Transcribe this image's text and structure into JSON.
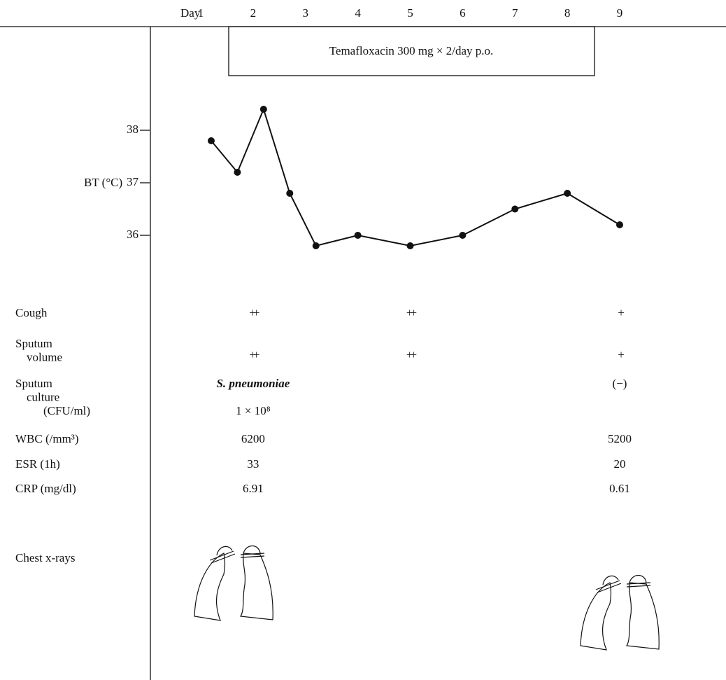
{
  "chart_data": {
    "type": "line",
    "x_label": "Day",
    "x": [
      1.2,
      1.7,
      2.2,
      2.7,
      3.2,
      4,
      5,
      6,
      7,
      8,
      9
    ],
    "xlim": [
      1,
      9
    ],
    "xticks": [
      1,
      2,
      3,
      4,
      5,
      6,
      7,
      8,
      9
    ],
    "y_label": "BT (°C)",
    "ylim": [
      35,
      39
    ],
    "yticks": [
      36,
      37,
      38
    ],
    "series": [
      {
        "color": "#111111",
        "values": [
          37.8,
          37.2,
          38.4,
          36.8,
          35.8,
          36.0,
          35.8,
          36.0,
          36.5,
          36.8,
          36.2
        ]
      }
    ],
    "annotation": "Temafloxacin 300 mg × 2/day p.o."
  },
  "course": {
    "rows": [
      {
        "label": [
          "Cough"
        ],
        "cells": [
          null,
          [
            "++"
          ],
          null,
          null,
          [
            "++"
          ],
          null,
          null,
          null,
          [
            "+"
          ]
        ]
      },
      {
        "label": [
          "Sputum",
          "volume"
        ],
        "cells": [
          null,
          [
            "++"
          ],
          null,
          null,
          [
            "++"
          ],
          null,
          null,
          null,
          [
            "+"
          ]
        ]
      },
      {
        "label": [
          "Sputum",
          "culture",
          "(CFU/ml)"
        ],
        "cells": [
          null,
          [
            "S. pneumoniae",
            "1 × 10⁸"
          ],
          null,
          null,
          null,
          null,
          null,
          null,
          [
            "(−)"
          ]
        ]
      },
      {
        "label": [
          "WBC (/mm³)"
        ],
        "cells": [
          null,
          [
            "6200"
          ],
          null,
          null,
          null,
          null,
          null,
          null,
          [
            "5200"
          ]
        ]
      },
      {
        "label": [
          "ESR (1h)"
        ],
        "cells": [
          null,
          [
            "33"
          ],
          null,
          null,
          null,
          null,
          null,
          null,
          [
            "20"
          ]
        ]
      },
      {
        "label": [
          "CRP (mg/dl)"
        ],
        "cells": [
          null,
          [
            "6.91"
          ],
          null,
          null,
          null,
          null,
          null,
          null,
          [
            "0.61"
          ]
        ]
      }
    ],
    "chest_xray_label": "Chest x-rays"
  }
}
